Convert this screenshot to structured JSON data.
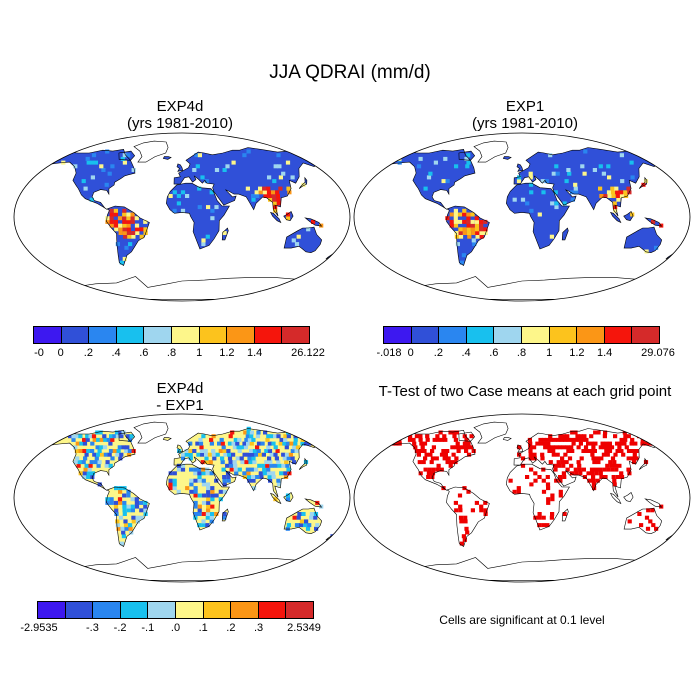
{
  "title": "JJA QDRAI (mm/d)",
  "panels": {
    "top_left": {
      "title_line1": "EXP4d",
      "title_line2": "(yrs 1981-2010)"
    },
    "top_right": {
      "title_line1": "EXP1",
      "title_line2": "(yrs 1981-2010)"
    },
    "bottom_left": {
      "title_line1": "EXP4d",
      "title_line2": "- EXP1"
    },
    "bottom_right": {
      "title": "T-Test of two Case means at each grid point"
    }
  },
  "colorbars": {
    "top_left": {
      "colors": [
        "#3d18f0",
        "#3050d8",
        "#2a86f0",
        "#18c0ee",
        "#9fd6ef",
        "#fdf68a",
        "#fcc31d",
        "#fb9616",
        "#f5150c",
        "#d52a2a"
      ],
      "labels": [
        "-0",
        "0",
        ".2",
        ".4",
        ".6",
        ".8",
        "1",
        "1.2",
        "1.4",
        "26.122"
      ]
    },
    "top_right": {
      "colors": [
        "#3d18f0",
        "#3050d8",
        "#2a86f0",
        "#18c0ee",
        "#9fd6ef",
        "#fdf68a",
        "#fcc31d",
        "#fb9616",
        "#f5150c",
        "#d52a2a"
      ],
      "labels": [
        "-.018",
        "0",
        ".2",
        ".4",
        ".6",
        ".8",
        "1",
        "1.2",
        "1.4",
        "29.076"
      ]
    },
    "bottom_left": {
      "colors": [
        "#3d18f0",
        "#3050d8",
        "#2a86f0",
        "#18c0ee",
        "#9fd6ef",
        "#fdf68a",
        "#fcc31d",
        "#fb9616",
        "#f5150c",
        "#d52a2a"
      ],
      "labels": [
        "-2.9535",
        "-.3",
        "-.2",
        "-.1",
        ".0",
        ".1",
        ".2",
        ".3",
        "2.5349"
      ]
    }
  },
  "significance_note": "Cells are significant at 0.1 level",
  "colors": {
    "ocean": "#ffffff",
    "coast": "#000000",
    "significant": "#ee0000"
  }
}
